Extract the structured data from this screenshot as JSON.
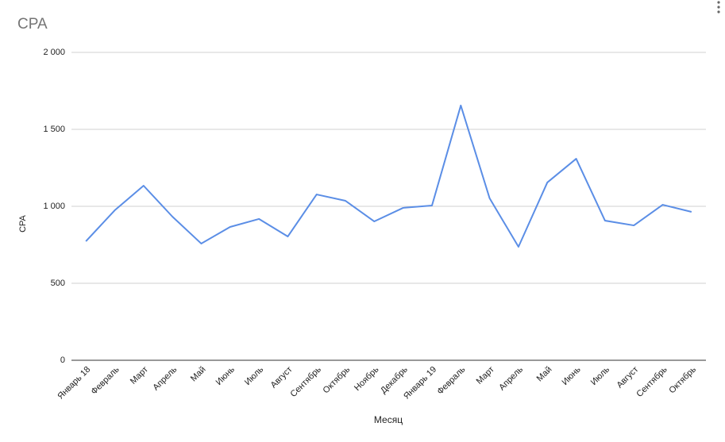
{
  "chart_data": {
    "type": "line",
    "title": "CPA",
    "x_label": "Месяц",
    "y_label": "CPA",
    "categories": [
      "Январь 18",
      "Февраль",
      "Март",
      "Апрель",
      "Май",
      "Июнь",
      "Июль",
      "Август",
      "Сентябрь",
      "Октябрь",
      "Ноябрь",
      "Декабрь",
      "Январь 19",
      "Февраль",
      "Март",
      "Апрель",
      "Май",
      "Июнь",
      "Июль",
      "Август",
      "Сентябрь",
      "Октябрь"
    ],
    "series": [
      {
        "name": "CPA",
        "color": "#5b8ee6",
        "values": [
          773,
          974,
          1134,
          933,
          758,
          866,
          918,
          804,
          1077,
          1036,
          902,
          990,
          1005,
          1655,
          1052,
          737,
          1155,
          1309,
          907,
          876,
          1010,
          964
        ]
      }
    ],
    "ylim": [
      0,
      2000
    ],
    "yticks": [
      0,
      500,
      {
        "value": 1000,
        "label": "1 000"
      },
      {
        "value": 1500,
        "label": "1 500"
      },
      {
        "value": 2000,
        "label": "2 000"
      }
    ],
    "grid": true
  }
}
